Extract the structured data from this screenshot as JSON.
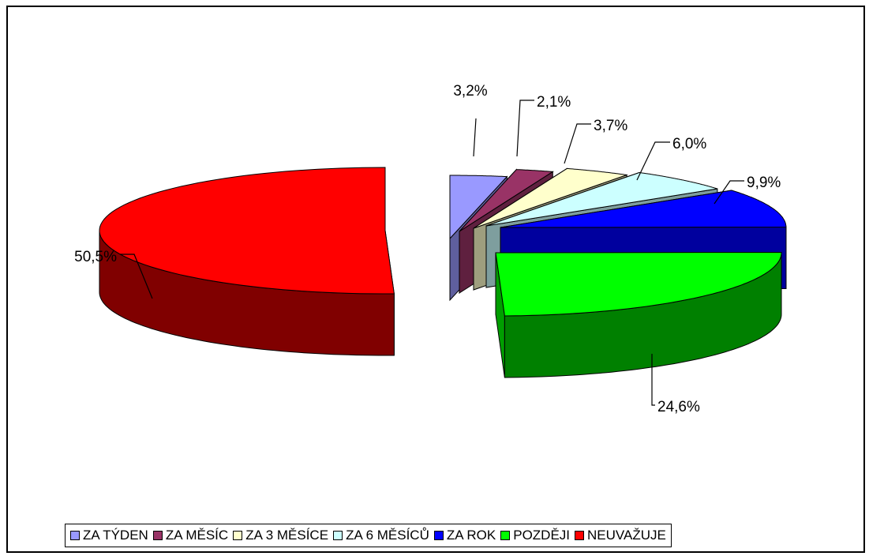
{
  "chart_data": {
    "type": "pie",
    "title": "",
    "slices": [
      {
        "label": "ZA TÝDEN",
        "value": 3.2,
        "text": "3,2%",
        "color": "#9999ff"
      },
      {
        "label": "ZA MĚSÍC",
        "value": 2.1,
        "text": "2,1%",
        "color": "#993366"
      },
      {
        "label": "ZA 3 MĚSÍCE",
        "value": 3.7,
        "text": "3,7%",
        "color": "#ffffcc"
      },
      {
        "label": "ZA 6 MĚSÍCŮ",
        "value": 6.0,
        "text": "6,0%",
        "color": "#ccffff"
      },
      {
        "label": "ZA ROK",
        "value": 9.9,
        "text": "9,9%",
        "color": "#0000ff"
      },
      {
        "label": "POZDĚJI",
        "value": 24.6,
        "text": "24,6%",
        "color": "#00ff00"
      },
      {
        "label": "NEUVAŽUJE",
        "value": 50.5,
        "text": "50,5%",
        "color": "#ff0000"
      }
    ],
    "legend_position": "bottom"
  }
}
